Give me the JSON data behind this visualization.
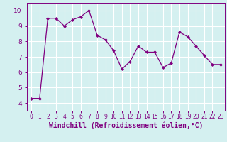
{
  "x": [
    0,
    1,
    2,
    3,
    4,
    5,
    6,
    7,
    8,
    9,
    10,
    11,
    12,
    13,
    14,
    15,
    16,
    17,
    18,
    19,
    20,
    21,
    22,
    23
  ],
  "y": [
    4.3,
    4.3,
    9.5,
    9.5,
    9.0,
    9.4,
    9.6,
    10.0,
    8.4,
    8.1,
    7.4,
    6.2,
    6.7,
    7.7,
    7.3,
    7.3,
    6.3,
    6.6,
    8.6,
    8.3,
    7.7,
    7.1,
    6.5,
    6.5
  ],
  "line_color": "#800080",
  "marker": "D",
  "markersize": 2.0,
  "linewidth": 0.9,
  "xlabel": "Windchill (Refroidissement éolien,°C)",
  "xlabel_fontsize": 7.0,
  "xlabel_color": "#800080",
  "ylim": [
    3.5,
    10.5
  ],
  "xlim": [
    -0.5,
    23.5
  ],
  "yticks": [
    4,
    5,
    6,
    7,
    8,
    9,
    10
  ],
  "xtick_labels": [
    "0",
    "1",
    "2",
    "3",
    "4",
    "5",
    "6",
    "7",
    "8",
    "9",
    "10",
    "11",
    "12",
    "13",
    "14",
    "15",
    "16",
    "17",
    "18",
    "19",
    "20",
    "21",
    "22",
    "23"
  ],
  "background_color": "#d4f0f0",
  "grid_color": "#ffffff",
  "tick_color": "#800080",
  "ytick_fontsize": 6.5,
  "xtick_fontsize": 5.5
}
